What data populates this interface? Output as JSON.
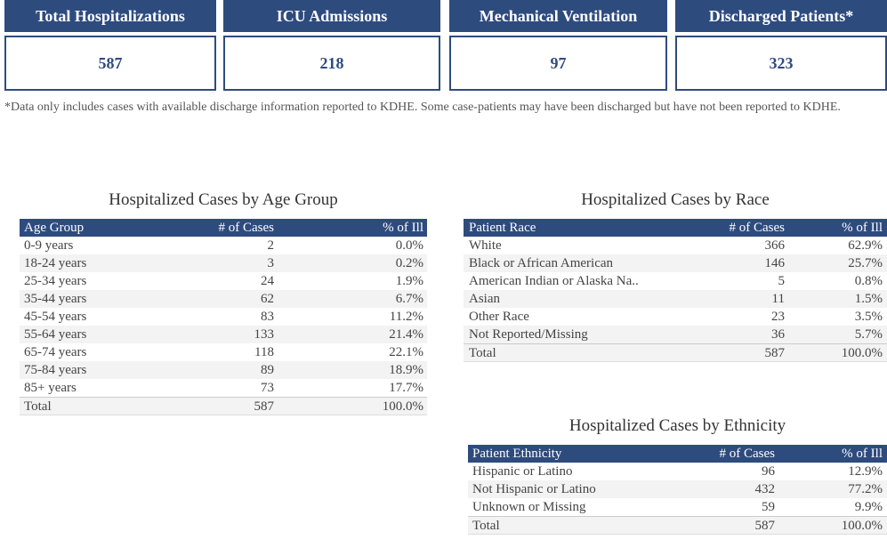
{
  "cards": [
    {
      "title": "Total Hospitalizations",
      "value": "587"
    },
    {
      "title": "ICU Admissions",
      "value": "218"
    },
    {
      "title": "Mechanical Ventilation",
      "value": "97"
    },
    {
      "title": "Discharged Patients*",
      "value": "323"
    }
  ],
  "note": "*Data only includes cases with available discharge information reported to KDHE. Some case-patients may have been discharged but have not been reported to KDHE.",
  "tables": [
    {
      "title": "Hospitalized Cases by Age Group",
      "header": [
        "Age Group",
        "# of Cases",
        "% of Ill"
      ],
      "rows": [
        [
          "0-9 years",
          "2",
          "0.0%"
        ],
        [
          "18-24 years",
          "3",
          "0.2%"
        ],
        [
          "25-34 years",
          "24",
          "1.9%"
        ],
        [
          "35-44 years",
          "62",
          "6.7%"
        ],
        [
          "45-54 years",
          "83",
          "11.2%"
        ],
        [
          "55-64 years",
          "133",
          "21.4%"
        ],
        [
          "65-74 years",
          "118",
          "22.1%"
        ],
        [
          "75-84 years",
          "89",
          "18.9%"
        ],
        [
          "85+ years",
          "73",
          "17.7%"
        ],
        [
          "Total",
          "587",
          "100.0%"
        ]
      ]
    },
    {
      "title": "Hospitalized Cases by Race",
      "header": [
        "Patient Race",
        "# of Cases",
        "% of Ill"
      ],
      "rows": [
        [
          "White",
          "366",
          "62.9%"
        ],
        [
          "Black or African American",
          "146",
          "25.7%"
        ],
        [
          "American Indian or Alaska Na..",
          "5",
          "0.8%"
        ],
        [
          "Asian",
          "11",
          "1.5%"
        ],
        [
          "Other Race",
          "23",
          "3.5%"
        ],
        [
          "Not Reported/Missing",
          "36",
          "5.7%"
        ],
        [
          "Total",
          "587",
          "100.0%"
        ]
      ]
    },
    {
      "title": "Hospitalized Cases by Ethnicity",
      "header": [
        "Patient Ethnicity",
        "# of Cases",
        "% of Ill"
      ],
      "rows": [
        [
          "Hispanic or Latino",
          "96",
          "12.9%"
        ],
        [
          "Not Hispanic or Latino",
          "432",
          "77.2%"
        ],
        [
          "Unknown or Missing",
          "59",
          "9.9%"
        ],
        [
          "Total",
          "587",
          "100.0%"
        ]
      ]
    }
  ]
}
